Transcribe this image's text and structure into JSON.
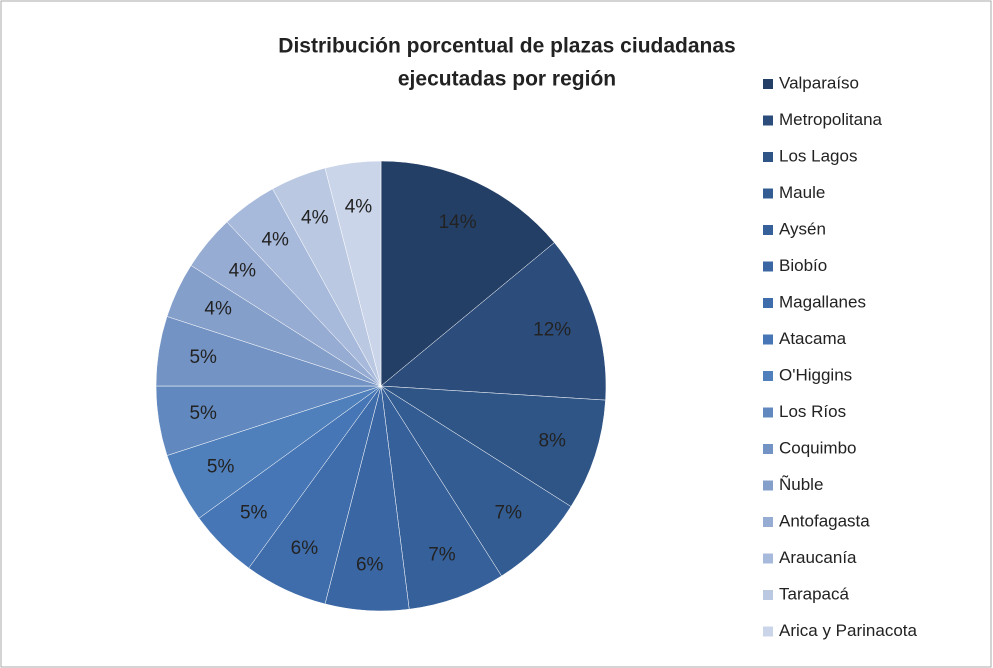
{
  "chart_data": {
    "type": "pie",
    "title": "Distribución  porcentual  de plazas ciudadanas",
    "subtitle": "ejecutadas por región",
    "categories": [
      "Valparaíso",
      "Metropolitana",
      "Los Lagos",
      "Maule",
      "Aysén",
      "Biobío",
      "Magallanes",
      "Atacama",
      "O'Higgins",
      "Los Ríos",
      "Coquimbo",
      "Ñuble",
      "Antofagasta",
      "Araucanía",
      "Tarapacá",
      "Arica y Parinacota"
    ],
    "values": [
      14,
      12,
      8,
      7,
      7,
      6,
      6,
      5,
      5,
      5,
      5,
      4,
      4,
      4,
      4,
      4
    ],
    "value_labels": [
      "14%",
      "12%",
      "8%",
      "7%",
      "7%",
      "6%",
      "6%",
      "5%",
      "5%",
      "5%",
      "5%",
      "4%",
      "4%",
      "4%",
      "4%",
      "4%"
    ],
    "colors": [
      "#243f66",
      "#2c4d7c",
      "#2f5587",
      "#335c92",
      "#36609a",
      "#3a67a3",
      "#3f6dab",
      "#4676b5",
      "#5080bb",
      "#6189bf",
      "#7393c4",
      "#859fcb",
      "#97acd2",
      "#a8badb",
      "#bac8e2",
      "#cbd5ea"
    ],
    "legend": "right"
  }
}
